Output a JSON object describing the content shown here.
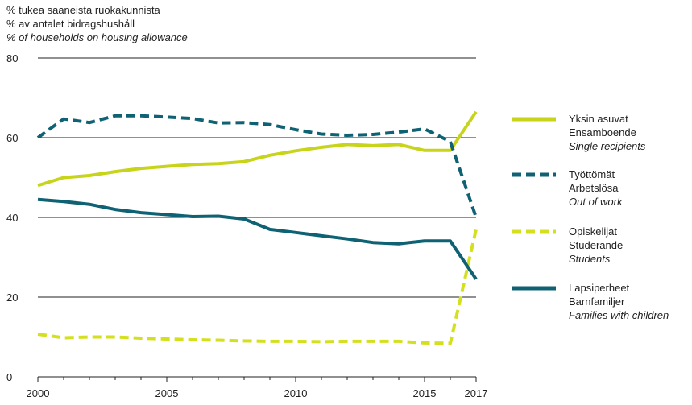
{
  "chart_data": {
    "type": "line",
    "unit_label": {
      "fi": "% tukea saaneista ruokakunnista",
      "sv": "% av antalet bidragshushåll",
      "en": "% of households on housing allowance"
    },
    "ylim": [
      0,
      80
    ],
    "yticks": [
      0,
      20,
      40,
      60,
      80
    ],
    "xlim": [
      2000,
      2017
    ],
    "xticks": [
      2000,
      2005,
      2010,
      2015,
      2017
    ],
    "grid": true,
    "legend_position": "right",
    "x": [
      2000,
      2001,
      2002,
      2003,
      2004,
      2005,
      2006,
      2007,
      2008,
      2009,
      2010,
      2011,
      2012,
      2013,
      2014,
      2015,
      2016,
      2017
    ],
    "series": [
      {
        "key": "single",
        "name_fi": "Yksin asuvat",
        "name_sv": "Ensamboende",
        "name_en": "Single recipients",
        "color": "#c8d41a",
        "dash": "solid",
        "values": [
          48,
          50,
          50.5,
          51.5,
          52.3,
          52.8,
          53.3,
          53.5,
          54,
          55.6,
          56.7,
          57.6,
          58.3,
          58,
          58.3,
          56.8,
          56.8,
          66.5
        ]
      },
      {
        "key": "out_of_work",
        "name_fi": "Työttömät",
        "name_sv": "Arbetslösa",
        "name_en": "Out of work",
        "color": "#0f6273",
        "dash": "dashed",
        "values": [
          60,
          64.7,
          63.8,
          65.5,
          65.5,
          65.2,
          64.8,
          63.7,
          63.8,
          63.3,
          62,
          60.9,
          60.6,
          60.8,
          61.4,
          62.2,
          59,
          40
        ]
      },
      {
        "key": "students",
        "name_fi": "Opiskelijat",
        "name_sv": "Studerande",
        "name_en": "Students",
        "color": "#d4e01e",
        "dash": "dashed",
        "values": [
          10.7,
          9.8,
          10,
          10,
          9.7,
          9.5,
          9.3,
          9.2,
          9,
          8.9,
          8.9,
          8.8,
          8.9,
          8.9,
          8.9,
          8.5,
          8.4,
          37
        ]
      },
      {
        "key": "families",
        "name_fi": "Lapsiperheet",
        "name_sv": "Barnfamiljer",
        "name_en": "Families with children",
        "color": "#0f6273",
        "dash": "solid",
        "values": [
          44.5,
          44,
          43.3,
          42,
          41.2,
          40.7,
          40.2,
          40.3,
          39.6,
          37,
          36.2,
          35.4,
          34.6,
          33.7,
          33.4,
          34.1,
          34.1,
          24.5
        ]
      }
    ]
  }
}
